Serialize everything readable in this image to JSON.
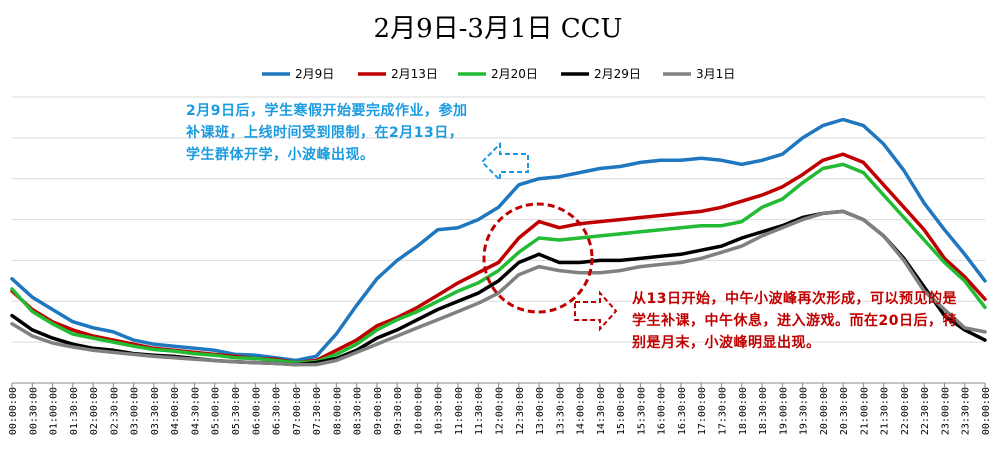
{
  "chart_data": {
    "type": "line",
    "title": "2月9日-3月1日 CCU",
    "xlabel": "",
    "ylabel": "",
    "grid": true,
    "legend_position": "top-center",
    "x": [
      "00:00:00",
      "00:30:00",
      "01:00:00",
      "01:30:00",
      "02:00:00",
      "02:30:00",
      "03:00:00",
      "03:30:00",
      "04:00:00",
      "04:30:00",
      "05:00:00",
      "05:30:00",
      "06:00:00",
      "06:30:00",
      "07:00:00",
      "07:30:00",
      "08:00:00",
      "08:30:00",
      "09:00:00",
      "09:30:00",
      "10:00:00",
      "10:30:00",
      "11:00:00",
      "11:30:00",
      "12:00:00",
      "12:30:00",
      "13:00:00",
      "13:30:00",
      "14:00:00",
      "14:30:00",
      "15:00:00",
      "15:30:00",
      "16:00:00",
      "16:30:00",
      "17:00:00",
      "17:30:00",
      "18:00:00",
      "18:30:00",
      "19:00:00",
      "19:30:00",
      "20:00:00",
      "20:30:00",
      "21:00:00",
      "21:30:00",
      "22:00:00",
      "22:30:00",
      "23:00:00",
      "23:30:00",
      "00:00:00"
    ],
    "ylim": [
      0,
      7
    ],
    "series": [
      {
        "name": "2月9日",
        "color": "#1f77c0",
        "values": [
          2.55,
          2.1,
          1.8,
          1.5,
          1.35,
          1.25,
          1.05,
          0.95,
          0.9,
          0.85,
          0.8,
          0.7,
          0.68,
          0.62,
          0.55,
          0.65,
          1.2,
          1.9,
          2.55,
          3.0,
          3.35,
          3.75,
          3.8,
          4.0,
          4.3,
          4.85,
          5.0,
          5.05,
          5.15,
          5.25,
          5.3,
          5.4,
          5.45,
          5.45,
          5.5,
          5.45,
          5.35,
          5.45,
          5.6,
          6.0,
          6.3,
          6.45,
          6.3,
          5.85,
          5.2,
          4.4,
          3.75,
          3.15,
          2.5
        ]
      },
      {
        "name": "2月13日",
        "color": "#c00000",
        "values": [
          2.25,
          1.8,
          1.5,
          1.3,
          1.15,
          1.05,
          0.95,
          0.85,
          0.8,
          0.75,
          0.7,
          0.65,
          0.6,
          0.58,
          0.5,
          0.55,
          0.8,
          1.05,
          1.4,
          1.6,
          1.85,
          2.15,
          2.45,
          2.7,
          2.95,
          3.55,
          3.95,
          3.8,
          3.9,
          3.95,
          4.0,
          4.05,
          4.1,
          4.15,
          4.2,
          4.3,
          4.45,
          4.6,
          4.8,
          5.1,
          5.45,
          5.6,
          5.4,
          4.85,
          4.3,
          3.75,
          3.05,
          2.6,
          2.05
        ]
      },
      {
        "name": "2月20日",
        "color": "#22bb33",
        "values": [
          2.3,
          1.75,
          1.45,
          1.2,
          1.1,
          1.0,
          0.9,
          0.82,
          0.78,
          0.72,
          0.68,
          0.62,
          0.6,
          0.55,
          0.5,
          0.52,
          0.7,
          0.95,
          1.3,
          1.55,
          1.75,
          2.0,
          2.25,
          2.45,
          2.75,
          3.2,
          3.55,
          3.5,
          3.55,
          3.6,
          3.65,
          3.7,
          3.75,
          3.8,
          3.85,
          3.85,
          3.95,
          4.3,
          4.5,
          4.9,
          5.25,
          5.35,
          5.15,
          4.6,
          4.05,
          3.5,
          2.95,
          2.5,
          1.85
        ]
      },
      {
        "name": "2月29日",
        "color": "#000000",
        "values": [
          1.65,
          1.3,
          1.1,
          0.95,
          0.85,
          0.8,
          0.72,
          0.68,
          0.65,
          0.6,
          0.55,
          0.52,
          0.5,
          0.48,
          0.45,
          0.5,
          0.6,
          0.8,
          1.1,
          1.3,
          1.55,
          1.8,
          2.0,
          2.2,
          2.5,
          2.95,
          3.15,
          2.95,
          2.95,
          3.0,
          3.0,
          3.05,
          3.1,
          3.15,
          3.25,
          3.35,
          3.55,
          3.7,
          3.85,
          4.05,
          4.15,
          4.2,
          4.0,
          3.6,
          3.05,
          2.35,
          1.65,
          1.3,
          1.05
        ]
      },
      {
        "name": "3月1日",
        "color": "#808080",
        "values": [
          1.45,
          1.15,
          0.98,
          0.88,
          0.8,
          0.75,
          0.7,
          0.65,
          0.62,
          0.58,
          0.55,
          0.52,
          0.5,
          0.48,
          0.45,
          0.45,
          0.55,
          0.75,
          0.95,
          1.15,
          1.35,
          1.55,
          1.75,
          1.95,
          2.2,
          2.65,
          2.85,
          2.75,
          2.7,
          2.7,
          2.75,
          2.85,
          2.9,
          2.95,
          3.05,
          3.2,
          3.35,
          3.6,
          3.8,
          4.0,
          4.15,
          4.2,
          4.0,
          3.6,
          3.0,
          2.25,
          1.8,
          1.35,
          1.25
        ]
      }
    ],
    "annotations": [
      "2月9日后，学生寒假开始要完成作业，参加补课班，上线时间受到限制，在2月13日，学生群体开学，小波峰出现。",
      "从13日开始，中午小波峰再次形成，可以预见的是学生补课，中午休息，进入游戏。而在20日后，特别是月末，小波峰明显出现。"
    ]
  }
}
